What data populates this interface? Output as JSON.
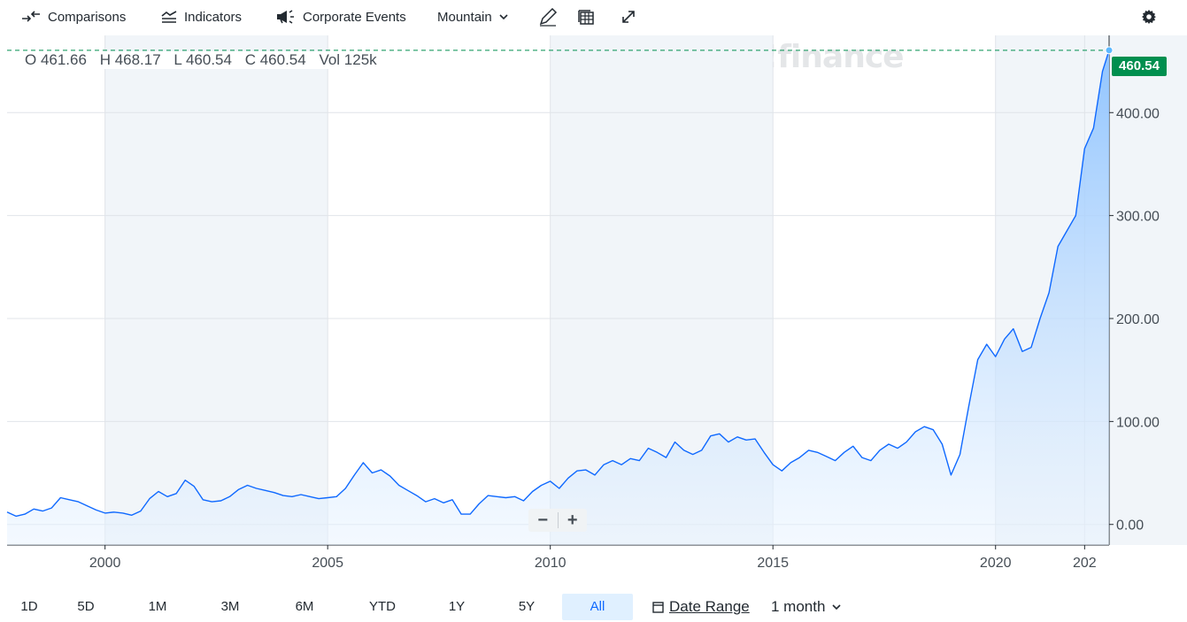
{
  "toolbar": {
    "comparisons_label": "Comparisons",
    "indicators_label": "Indicators",
    "corporate_events_label": "Corporate Events",
    "chart_type_label": "Mountain",
    "draw_icon": "pencil-icon",
    "table_icon": "table-icon",
    "expand_icon": "expand-icon",
    "settings_icon": "gear-icon"
  },
  "watermark": "yahoo!finance",
  "ohlc": {
    "open": "O 461.66",
    "high": "H 468.17",
    "low": "L 460.54",
    "close": "C 460.54",
    "volume": "Vol 125k"
  },
  "price_tag": "460.54",
  "zoom": {
    "minus": "−",
    "plus": "+"
  },
  "range": {
    "buttons": [
      "1D",
      "5D",
      "1M",
      "3M",
      "6M",
      "YTD",
      "1Y",
      "5Y",
      "All"
    ],
    "active": "All",
    "date_range_label": "Date Range",
    "interval_label": "1 month"
  },
  "colors": {
    "line": "#0f69ff",
    "fill_top": "#8cc2ff",
    "price_tag": "#008f4f",
    "active_range_bg": "#e0f0ff"
  },
  "chart_data": {
    "type": "area",
    "x_ticks": [
      "2000",
      "2005",
      "2010",
      "2015",
      "2020",
      "202"
    ],
    "y_ticks": [
      "0.00",
      "100.00",
      "200.00",
      "300.00",
      "400.00"
    ],
    "ylim": [
      -20,
      475
    ],
    "xlim": [
      1997.8,
      2022.55
    ],
    "last_price": 460.54,
    "grid": true,
    "x": [
      1997.8,
      1998.0,
      1998.2,
      1998.4,
      1998.6,
      1998.8,
      1999.0,
      1999.2,
      1999.4,
      1999.6,
      1999.8,
      2000.0,
      2000.2,
      2000.4,
      2000.6,
      2000.8,
      2001.0,
      2001.2,
      2001.4,
      2001.6,
      2001.8,
      2002.0,
      2002.2,
      2002.4,
      2002.6,
      2002.8,
      2003.0,
      2003.2,
      2003.4,
      2003.6,
      2003.8,
      2004.0,
      2004.2,
      2004.4,
      2004.6,
      2004.8,
      2005.0,
      2005.2,
      2005.4,
      2005.6,
      2005.8,
      2006.0,
      2006.2,
      2006.4,
      2006.6,
      2006.8,
      2007.0,
      2007.2,
      2007.4,
      2007.6,
      2007.8,
      2008.0,
      2008.2,
      2008.4,
      2008.6,
      2008.8,
      2009.0,
      2009.2,
      2009.4,
      2009.6,
      2009.8,
      2010.0,
      2010.2,
      2010.4,
      2010.6,
      2010.8,
      2011.0,
      2011.2,
      2011.4,
      2011.6,
      2011.8,
      2012.0,
      2012.2,
      2012.4,
      2012.6,
      2012.8,
      2013.0,
      2013.2,
      2013.4,
      2013.6,
      2013.8,
      2014.0,
      2014.2,
      2014.4,
      2014.6,
      2014.8,
      2015.0,
      2015.2,
      2015.4,
      2015.6,
      2015.8,
      2016.0,
      2016.2,
      2016.4,
      2016.6,
      2016.8,
      2017.0,
      2017.2,
      2017.4,
      2017.6,
      2017.8,
      2018.0,
      2018.2,
      2018.4,
      2018.6,
      2018.8,
      2019.0,
      2019.2,
      2019.4,
      2019.6,
      2019.8,
      2020.0,
      2020.2,
      2020.4,
      2020.6,
      2020.8,
      2021.0,
      2021.2,
      2021.4,
      2021.6,
      2021.8,
      2022.0,
      2022.2,
      2022.4,
      2022.55
    ],
    "values": [
      12,
      8,
      10,
      15,
      13,
      16,
      26,
      24,
      22,
      18,
      14,
      11,
      12,
      11,
      9,
      13,
      25,
      32,
      27,
      30,
      43,
      37,
      24,
      22,
      23,
      27,
      34,
      38,
      35,
      33,
      31,
      28,
      27,
      29,
      27,
      25,
      26,
      27,
      35,
      48,
      60,
      50,
      53,
      47,
      38,
      33,
      28,
      22,
      25,
      21,
      24,
      10,
      10,
      20,
      28,
      27,
      26,
      27,
      23,
      32,
      38,
      42,
      35,
      45,
      52,
      53,
      48,
      58,
      62,
      58,
      64,
      62,
      74,
      70,
      65,
      80,
      72,
      68,
      72,
      86,
      88,
      80,
      85,
      82,
      83,
      70,
      58,
      52,
      60,
      65,
      72,
      70,
      66,
      62,
      70,
      76,
      65,
      62,
      72,
      78,
      74,
      80,
      90,
      95,
      92,
      78,
      48,
      68,
      115,
      160,
      175,
      163,
      180,
      190,
      168,
      172,
      200,
      225,
      270,
      285,
      300,
      365,
      385,
      440,
      460.54
    ]
  }
}
